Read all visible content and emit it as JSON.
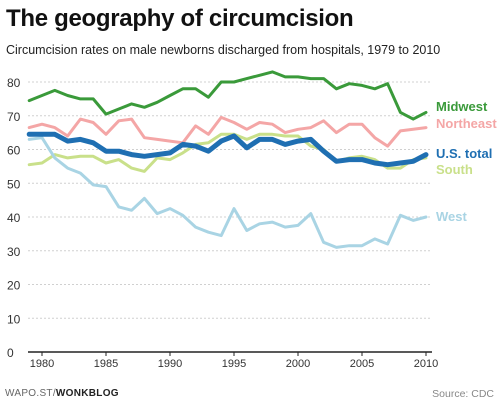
{
  "header": {
    "title": "The geography of circumcision",
    "subtitle": "Circumcision rates on male newborns discharged from hospitals, 1979 to 2010"
  },
  "footer": {
    "brand_prefix": "WAPO.ST/",
    "brand_name": "WONKBLOG",
    "source": "Source: CDC"
  },
  "chart_data": {
    "type": "line",
    "title": "The geography of circumcision",
    "subtitle": "Circumcision rates on male newborns discharged from hospitals, 1979 to 2010",
    "xlabel": "",
    "ylabel": "",
    "xlim": [
      1979,
      2010
    ],
    "ylim": [
      0,
      80
    ],
    "x_ticks": [
      1980,
      1985,
      1990,
      1995,
      2000,
      2005,
      2010
    ],
    "y_ticks": [
      0,
      10,
      20,
      30,
      40,
      50,
      60,
      70,
      80
    ],
    "grid": true,
    "legend": "direct labels at right end of lines",
    "x": [
      1979,
      1980,
      1981,
      1982,
      1983,
      1984,
      1985,
      1986,
      1987,
      1988,
      1989,
      1990,
      1991,
      1992,
      1993,
      1994,
      1995,
      1996,
      1997,
      1998,
      1999,
      2000,
      2001,
      2002,
      2003,
      2004,
      2005,
      2006,
      2007,
      2008,
      2009,
      2010
    ],
    "series": [
      {
        "name": "Midwest",
        "color": "#3a9a3a",
        "values": [
          74.5,
          76,
          77.5,
          76,
          75,
          75,
          70.5,
          72,
          73.5,
          72.5,
          74,
          76,
          78,
          78,
          75.5,
          80,
          80,
          81,
          82,
          83,
          81.5,
          81.5,
          81,
          81,
          78,
          79.5,
          79,
          78,
          79.5,
          71,
          69,
          71
        ]
      },
      {
        "name": "Northeast",
        "color": "#f4a6a6",
        "values": [
          66.5,
          67.5,
          66.5,
          64,
          69,
          68,
          64.5,
          68.5,
          69,
          63.5,
          63,
          62.5,
          62,
          67,
          64.5,
          69.5,
          68,
          66,
          68,
          67.5,
          65,
          66,
          66.5,
          68.5,
          65,
          67.5,
          67.5,
          63.5,
          61,
          65.5,
          66,
          66.5
        ]
      },
      {
        "name": "South",
        "color": "#c9e08a",
        "values": [
          55.5,
          56,
          58.5,
          57.5,
          58,
          58,
          56,
          57,
          54.5,
          53.5,
          57.5,
          57,
          59,
          61.5,
          62,
          64.5,
          64.5,
          63,
          64.5,
          64.5,
          64,
          64,
          61,
          60,
          56.5,
          57.5,
          58,
          57,
          54.5,
          54.5,
          57,
          57.5
        ]
      },
      {
        "name": "U.S. total",
        "color": "#1f6fb2",
        "values": [
          64.5,
          64.5,
          64.5,
          62.5,
          63,
          62,
          59.5,
          59.5,
          58.5,
          58,
          58.5,
          59,
          61.5,
          61,
          59.5,
          62.5,
          64,
          60.5,
          63,
          63,
          61.5,
          62.5,
          63,
          59.5,
          56.5,
          57,
          57,
          56,
          55.5,
          56,
          56.5,
          58.5
        ]
      },
      {
        "name": "West",
        "color": "#a9d4e4",
        "values": [
          63,
          63.5,
          57.5,
          54.5,
          53,
          49.5,
          49,
          43,
          42,
          45.5,
          41,
          42.5,
          40.5,
          37,
          35.5,
          34.5,
          42.5,
          36,
          38,
          38.5,
          37,
          37.5,
          41,
          32.5,
          31,
          31.5,
          31.5,
          33.5,
          32,
          40.5,
          39,
          40
        ]
      }
    ]
  }
}
